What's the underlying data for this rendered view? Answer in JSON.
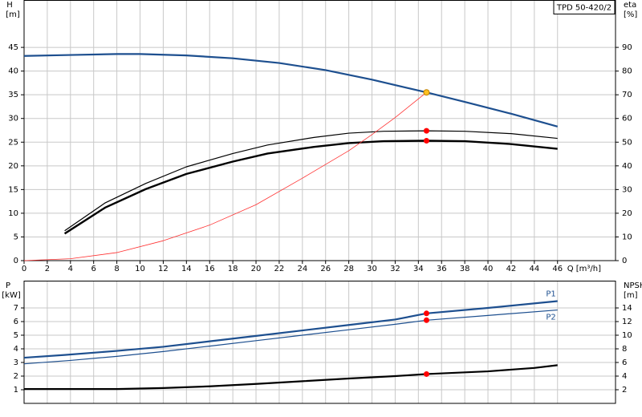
{
  "chart_data": [
    {
      "type": "line",
      "title": "TPD 50-420/2",
      "ylabel": "H",
      "yunit": "[m]",
      "y2label": "eta",
      "y2unit": "[%]",
      "xlabel": "Q [m³/h]",
      "xlim": [
        0,
        51
      ],
      "xticks": [
        0,
        2,
        4,
        6,
        8,
        10,
        12,
        14,
        16,
        18,
        20,
        22,
        24,
        26,
        28,
        30,
        32,
        34,
        36,
        38,
        40,
        42,
        44,
        46
      ],
      "ylim": [
        0,
        55
      ],
      "yticks": [
        0,
        5,
        10,
        15,
        20,
        25,
        30,
        35,
        40,
        45
      ],
      "y2lim": [
        0,
        110
      ],
      "y2ticks": [
        0,
        10,
        20,
        30,
        40,
        50,
        60,
        70,
        80,
        90
      ],
      "grid": true,
      "series": [
        {
          "color": "#1d4f8f",
          "width": 2.2,
          "x": [
            0,
            4,
            8,
            10,
            14,
            18,
            22,
            26,
            30,
            34.7,
            38,
            42,
            46
          ],
          "values": [
            43.2,
            43.4,
            43.6,
            43.6,
            43.3,
            42.7,
            41.7,
            40.2,
            38.2,
            35.5,
            33.5,
            31,
            28.3
          ]
        },
        {
          "color": "#000000",
          "width": 1.2,
          "axis": "y2",
          "x": [
            3.5,
            7,
            10.5,
            14,
            18,
            21,
            25,
            28,
            31,
            34.7,
            38,
            42,
            46
          ],
          "values": [
            12.6,
            24.4,
            32.6,
            39.6,
            45.2,
            48.8,
            52,
            53.8,
            54.6,
            54.8,
            54.6,
            53.6,
            51.6
          ]
        },
        {
          "color": "#000000",
          "width": 2.4,
          "axis": "y2",
          "x": [
            3.5,
            7,
            10.5,
            14,
            18,
            21,
            25,
            28,
            31,
            34.7,
            38,
            42,
            46
          ],
          "values": [
            11.4,
            22.4,
            30.2,
            36.6,
            41.8,
            45.2,
            48,
            49.6,
            50.4,
            50.6,
            50.4,
            49.2,
            47.2
          ]
        },
        {
          "color": "#ff3030",
          "width": 0.8,
          "x": [
            0,
            4,
            8,
            12,
            16,
            20,
            24,
            28,
            30,
            32,
            34.7
          ],
          "values": [
            0,
            0.4,
            1.7,
            4.2,
            7.5,
            11.8,
            17.4,
            23.2,
            26.6,
            30.2,
            35.5
          ]
        }
      ],
      "points": [
        {
          "x": 34.7,
          "y": 35.5,
          "color": "#ffc020"
        },
        {
          "x": 34.7,
          "y": 54.8,
          "axis": "y2",
          "color": "#ff0000"
        },
        {
          "x": 34.7,
          "y": 50.6,
          "axis": "y2",
          "color": "#ff0000"
        }
      ]
    },
    {
      "type": "line",
      "ylabel": "P",
      "yunit": "[kW]",
      "y2label": "NPSH",
      "y2unit": "[m]",
      "xlim": [
        0,
        51
      ],
      "ylim": [
        0,
        9
      ],
      "yticks": [
        1,
        2,
        3,
        4,
        5,
        6,
        7
      ],
      "y2lim": [
        0,
        18
      ],
      "y2ticks": [
        2,
        4,
        6,
        8,
        10,
        12,
        14
      ],
      "grid": true,
      "series": [
        {
          "name": "P1",
          "color": "#1d4f8f",
          "width": 2.2,
          "x": [
            0,
            3.5,
            8,
            12,
            16,
            20,
            24,
            28,
            32,
            34.7,
            40,
            46
          ],
          "values": [
            3.35,
            3.55,
            3.85,
            4.15,
            4.55,
            4.95,
            5.35,
            5.75,
            6.15,
            6.6,
            7.0,
            7.5
          ]
        },
        {
          "name": "P2",
          "color": "#1d4f8f",
          "width": 1.2,
          "x": [
            0,
            4,
            8,
            12,
            16,
            20,
            24,
            28,
            32,
            34.7,
            40,
            46
          ],
          "values": [
            2.9,
            3.15,
            3.45,
            3.8,
            4.2,
            4.6,
            5.0,
            5.4,
            5.8,
            6.1,
            6.45,
            6.85
          ]
        },
        {
          "color": "#000000",
          "width": 2.2,
          "axis": "y2",
          "x": [
            0,
            3.5,
            8,
            12,
            16,
            20,
            24,
            28,
            32,
            34.7,
            40,
            44,
            46
          ],
          "values": [
            2.1,
            2.1,
            2.1,
            2.25,
            2.5,
            2.85,
            3.25,
            3.65,
            4.0,
            4.3,
            4.7,
            5.2,
            5.6
          ]
        }
      ],
      "points": [
        {
          "x": 34.7,
          "y": 6.6,
          "color": "#ff0000"
        },
        {
          "x": 34.7,
          "y": 6.1,
          "color": "#ff0000"
        },
        {
          "x": 34.7,
          "y": 4.3,
          "axis": "y2",
          "color": "#ff0000"
        }
      ]
    }
  ]
}
